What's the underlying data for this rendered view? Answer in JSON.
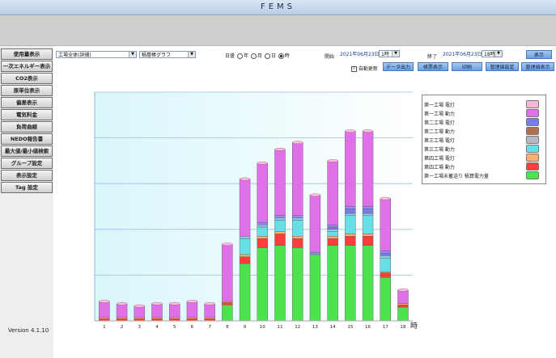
{
  "app": {
    "title": "FEMS",
    "version": "Version 4.1.10"
  },
  "sidebar": {
    "items": [
      {
        "label": "使用量表示",
        "active": true
      },
      {
        "label": "一次エネルギー表示",
        "active": false
      },
      {
        "label": "CO2表示",
        "active": false
      },
      {
        "label": "原単位表示",
        "active": false
      },
      {
        "label": "偏差表示",
        "active": false
      },
      {
        "label": "電気料金",
        "active": false
      },
      {
        "label": "負荷曲線",
        "active": false
      },
      {
        "label": "NEDO報告書",
        "active": false
      },
      {
        "label": "最大値/最小値検索",
        "active": false
      },
      {
        "label": "グループ設定",
        "active": false
      },
      {
        "label": "表示設定",
        "active": false
      },
      {
        "label": "Tag 設定",
        "active": false
      }
    ]
  },
  "controls": {
    "scope_select": "工場全体(詳細)",
    "graph_select": "積層棒グラフ",
    "period_label": "日盛",
    "period_options": [
      {
        "label": "年",
        "selected": false
      },
      {
        "label": "月",
        "selected": false
      },
      {
        "label": "日",
        "selected": false
      },
      {
        "label": "時",
        "selected": true
      }
    ],
    "start_label": "開始",
    "start_date": "2021年06月23日",
    "start_hour": "1時",
    "end_label": "終了",
    "end_date": "2021年06月23日",
    "end_hour": "18時",
    "show_button": "表示",
    "auto_update_label": "自動更新",
    "auto_update_checked": true,
    "buttons": [
      "データ出力",
      "帳票表示",
      "印刷",
      "管理値設定",
      "管理値表示"
    ]
  },
  "chart_data": {
    "type": "bar",
    "stacked": true,
    "xlabel": "時",
    "categories": [
      "1",
      "2",
      "3",
      "4",
      "5",
      "6",
      "7",
      "8",
      "9",
      "10",
      "11",
      "12",
      "13",
      "14",
      "15",
      "16",
      "17",
      "18"
    ],
    "ylim": [
      0,
      100
    ],
    "grid": true,
    "legend_position": "top-right",
    "series": [
      {
        "name": "第一工場未蓄送り 積算電力量",
        "color": "#4fe24f",
        "values": [
          0,
          0,
          0,
          0,
          0,
          0,
          0,
          7,
          25,
          32,
          33,
          32,
          29,
          33,
          33,
          33,
          19,
          6
        ]
      },
      {
        "name": "第四工場 動力",
        "color": "#ff3d3d",
        "values": [
          1,
          1,
          1,
          1,
          1,
          1,
          1,
          1,
          3,
          4,
          5,
          4,
          0,
          3,
          4,
          4,
          2,
          1
        ]
      },
      {
        "name": "第四工場 電灯",
        "color": "#ffb070",
        "values": [
          0.5,
          0.5,
          0.5,
          0.5,
          0.5,
          0.5,
          0.5,
          0.5,
          1,
          1,
          1,
          1,
          0,
          1,
          1,
          1,
          0.5,
          0.5
        ]
      },
      {
        "name": "第三工場 動力",
        "color": "#66e0e6",
        "values": [
          0,
          0,
          0,
          0,
          0,
          0,
          0,
          0,
          7,
          4,
          5,
          7,
          0,
          2,
          8,
          8,
          6,
          0
        ]
      },
      {
        "name": "第三工場 電灯",
        "color": "#8fc8e8",
        "values": [
          0,
          0,
          0,
          0,
          0,
          0,
          0,
          0,
          1,
          1,
          1,
          1,
          0,
          1,
          1,
          1,
          1,
          0
        ]
      },
      {
        "name": "第二工場 動力",
        "color": "#b07050",
        "values": [
          0,
          0,
          0,
          0,
          0,
          0,
          0,
          0,
          0,
          0,
          0,
          0,
          0,
          0,
          0,
          0,
          0,
          0
        ]
      },
      {
        "name": "第二工場 電灯",
        "color": "#7a7ae8",
        "values": [
          0,
          0,
          0,
          0,
          0,
          0,
          0,
          0,
          0,
          0,
          0,
          0,
          0,
          1,
          2,
          2,
          1,
          0
        ]
      },
      {
        "name": "第一工場 動力",
        "color": "#9090f0",
        "values": [
          0,
          0,
          0,
          0,
          0,
          0,
          0,
          0,
          0,
          1,
          1,
          1,
          1,
          1,
          1,
          1,
          1,
          0
        ]
      },
      {
        "name": "第一工場 電灯",
        "color": "#e070e8",
        "values": [
          7,
          6,
          5,
          6,
          6,
          7,
          6,
          25,
          25,
          26,
          29,
          32,
          25,
          28,
          33,
          33,
          23,
          6
        ]
      }
    ]
  }
}
